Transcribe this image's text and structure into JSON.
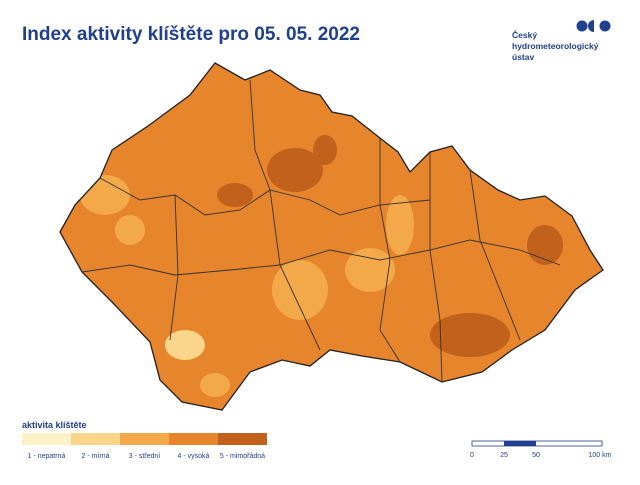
{
  "header": {
    "title": "Index aktivity klíštěte pro 05. 05. 2022",
    "logo": [
      "Český",
      "hydrometeorologický",
      "ústav"
    ]
  },
  "legend": {
    "title": "aktivita klíštěte",
    "items": [
      {
        "label": "1 - nepatrná",
        "color": "#fdf1c7"
      },
      {
        "label": "2 - mírná",
        "color": "#fbd58a"
      },
      {
        "label": "3 - střední",
        "color": "#f3a94a"
      },
      {
        "label": "4 - vysoká",
        "color": "#e6852c"
      },
      {
        "label": "5 - mimořádná",
        "color": "#c1611b"
      }
    ]
  },
  "scale": {
    "labels": [
      "0",
      "25",
      "50",
      "100 km"
    ]
  }
}
